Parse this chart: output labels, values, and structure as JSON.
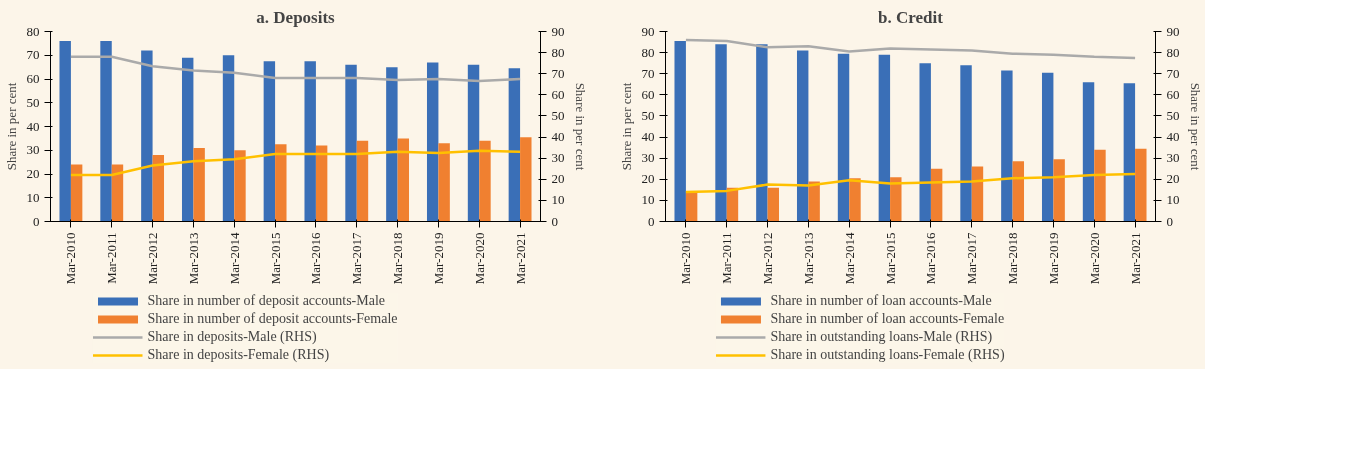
{
  "chart_data": [
    {
      "type": "bar",
      "title": "a. Deposits",
      "categories": [
        "Mar-2010",
        "Mar-2011",
        "Mar-2012",
        "Mar-2013",
        "Mar-2014",
        "Mar-2015",
        "Mar-2016",
        "Mar-2017",
        "Mar-2018",
        "Mar-2019",
        "Mar-2020",
        "Mar-2021"
      ],
      "ylabel": "Share in per cent",
      "y2label": "Share in per cent",
      "ylim": [
        0,
        80
      ],
      "yticks": [
        0,
        10,
        20,
        30,
        40,
        50,
        60,
        70,
        80
      ],
      "y2lim": [
        0,
        90
      ],
      "y2ticks": [
        0,
        10,
        20,
        30,
        40,
        50,
        60,
        70,
        80,
        90
      ],
      "grid": false,
      "legend": "bottom",
      "series": [
        {
          "name": "Share in number of deposit accounts-Male",
          "color": "#3a6fb7",
          "values": [
            76,
            76,
            72,
            69,
            70,
            67.5,
            67.5,
            66,
            65,
            67,
            66,
            64.5
          ]
        },
        {
          "name": "Share in number of deposit accounts-Female",
          "color": "#f08030",
          "values": [
            24,
            24,
            28,
            31,
            30,
            32.5,
            32,
            34,
            35,
            33,
            34,
            35.5
          ]
        },
        {
          "name": "Share in deposits-Male (RHS)",
          "type": "line",
          "axis": "y2",
          "color": "#aaaaaa",
          "values": [
            78,
            78,
            73.5,
            71.5,
            70.5,
            68,
            68,
            68,
            67,
            67.5,
            66.5,
            67.5
          ]
        },
        {
          "name": "Share in deposits-Female (RHS)",
          "type": "line",
          "axis": "y2",
          "color": "#ffc000",
          "values": [
            22,
            22,
            26.5,
            28.5,
            29.5,
            32,
            32,
            32,
            33,
            32.5,
            33.5,
            33
          ]
        }
      ]
    },
    {
      "type": "bar",
      "title": "b. Credit",
      "categories": [
        "Mar-2010",
        "Mar-2011",
        "Mar-2012",
        "Mar-2013",
        "Mar-2014",
        "Mar-2015",
        "Mar-2016",
        "Mar-2017",
        "Mar-2018",
        "Mar-2019",
        "Mar-2020",
        "Mar-2021"
      ],
      "ylabel": "Share in per cent",
      "y2label": "Share in per cent",
      "ylim": [
        0,
        90
      ],
      "yticks": [
        0,
        10,
        20,
        30,
        40,
        50,
        60,
        70,
        80,
        90
      ],
      "y2lim": [
        0,
        90
      ],
      "y2ticks": [
        0,
        10,
        20,
        30,
        40,
        50,
        60,
        70,
        80,
        90
      ],
      "grid": false,
      "legend": "bottom",
      "series": [
        {
          "name": "Share in number of loan accounts-Male",
          "color": "#3a6fb7",
          "values": [
            85.5,
            84,
            84,
            81,
            79.5,
            79,
            75,
            74,
            71.5,
            70.5,
            66,
            65.5
          ]
        },
        {
          "name": "Share in number of loan accounts-Female",
          "color": "#f08030",
          "values": [
            14.5,
            16,
            16,
            19,
            20.5,
            21,
            25,
            26,
            28.5,
            29.5,
            34,
            34.5
          ]
        },
        {
          "name": "Share in outstanding loans-Male (RHS)",
          "type": "line",
          "axis": "y2",
          "color": "#aaaaaa",
          "values": [
            86,
            85.5,
            82.5,
            83,
            80.5,
            82,
            81.5,
            81,
            79.5,
            79,
            78,
            77.5
          ]
        },
        {
          "name": "Share in outstanding loans-Female (RHS)",
          "type": "line",
          "axis": "y2",
          "color": "#ffc000",
          "values": [
            14,
            14.5,
            17.5,
            17,
            19.5,
            18,
            18.5,
            19,
            20.5,
            21,
            22,
            22.5
          ]
        }
      ]
    }
  ]
}
